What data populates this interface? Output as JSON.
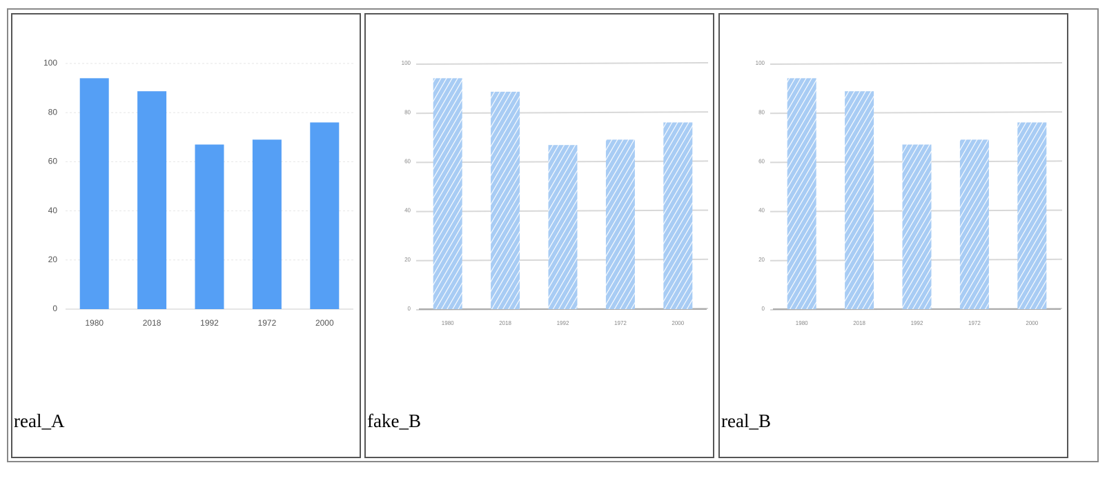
{
  "captions": [
    "real_A",
    "fake_B",
    "real_B"
  ],
  "chart_data": [
    {
      "type": "bar",
      "style": "plain",
      "color": "#559ff5",
      "grid": true,
      "categories": [
        "1980",
        "2018",
        "1992",
        "1972",
        "2000"
      ],
      "values": [
        94,
        88.7,
        67,
        69,
        76
      ],
      "ylim": [
        0,
        100
      ],
      "yticks": [
        0,
        20,
        40,
        60,
        80,
        100
      ]
    },
    {
      "type": "bar",
      "style": "sketch",
      "color": "#a8ccf4",
      "grid": true,
      "categories": [
        "1980",
        "2018",
        "1992",
        "1972",
        "2000"
      ],
      "values": [
        94,
        88.5,
        66.8,
        69,
        76
      ],
      "ylim": [
        0,
        100
      ],
      "yticks": [
        0,
        20,
        40,
        60,
        80,
        100
      ]
    },
    {
      "type": "bar",
      "style": "sketch",
      "color": "#a8ccf4",
      "grid": true,
      "categories": [
        "1980",
        "2018",
        "1992",
        "1972",
        "2000"
      ],
      "values": [
        94,
        88.7,
        67,
        69,
        76
      ],
      "ylim": [
        0,
        100
      ],
      "yticks": [
        0,
        20,
        40,
        60,
        80,
        100
      ]
    }
  ]
}
